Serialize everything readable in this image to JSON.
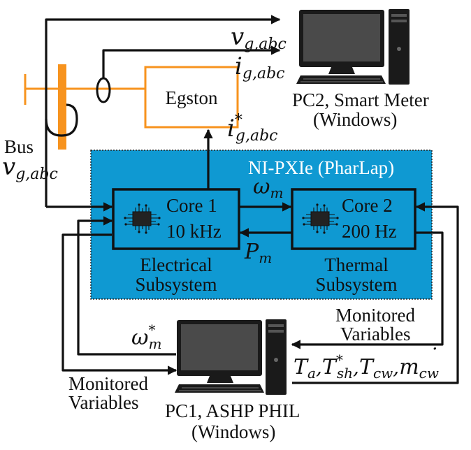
{
  "labels": {
    "pc2": "PC2, Smart Meter",
    "pc2_os": "(Windows)",
    "egston": "Egston",
    "bus": "Bus",
    "nipxie": "NI-PXIe (PharLap)",
    "core1_name": "Core 1",
    "core1_rate": "10 kHz",
    "core2_name": "Core 2",
    "core2_rate": "200 Hz",
    "electrical_1": "Electrical",
    "electrical_2": "Subsystem",
    "thermal_1": "Thermal",
    "thermal_2": "Subsystem",
    "monitored_r1": "Monitored",
    "monitored_r2": "Variables",
    "monitored_l1": "Monitored",
    "monitored_l2": "Variables",
    "pc1": "PC1, ASHP PHIL",
    "pc1_os": "(Windows)"
  },
  "signals": {
    "v_sym": "v",
    "v_sub": "g,abc",
    "i_sym": "i",
    "i_sub": "g,abc",
    "istar_sym": "i",
    "istar_sup": "*",
    "istar_sub": "g,abc",
    "bus_v_sym": "v",
    "bus_v_sub": "g,abc",
    "omega_sym": "ω",
    "omega_sub": "m",
    "pm_sym": "P",
    "pm_sub": "m",
    "omegastar_sym": "ω",
    "omegastar_sup": "*",
    "omegastar_sub": "m",
    "ta_sym": "T",
    "ta_sub": "a",
    "comma": ",",
    "tsh_sym": "T",
    "tsh_sup": "*",
    "tsh_sub": "sh",
    "tcw_sym": "T",
    "tcw_sub": "cw",
    "mcw_sym": "m",
    "mcw_dot": "˙",
    "mcw_sub": "cw"
  },
  "colors": {
    "subsystem_fill": "#0f99d2",
    "bus_orange": "#f7931e",
    "egston_border": "#f7931e",
    "line": "#111111",
    "monitor_screen": "#4a4a4a"
  },
  "icons": {
    "pc2": "desktop-computer-icon",
    "pc1": "desktop-computer-icon",
    "core1": "processor-chip-icon",
    "core2": "processor-chip-icon"
  }
}
